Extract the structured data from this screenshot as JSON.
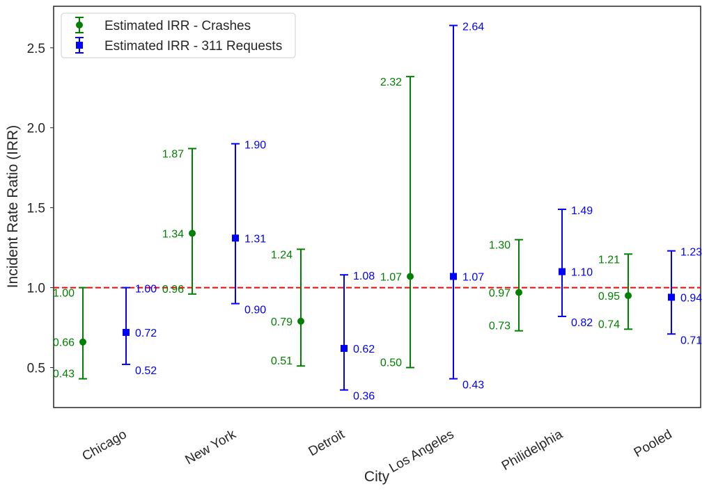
{
  "chart_data": {
    "type": "errorbar",
    "xlabel": "City",
    "ylabel": "Incident Rate Ratio (IRR)",
    "categories": [
      "Chicago",
      "New York",
      "Detroit",
      "Los Angeles",
      "Philidelphia",
      "Pooled"
    ],
    "ylim": [
      0.25,
      2.76
    ],
    "yticks": [
      0.5,
      1.0,
      1.5,
      2.0,
      2.5
    ],
    "ytick_labels": [
      "0.5",
      "1.0",
      "1.5",
      "2.0",
      "2.5"
    ],
    "reference_line": {
      "y": 1.0,
      "style": "dashed",
      "color": "#ff0000"
    },
    "grid": false,
    "legend_position": "top-left",
    "series": [
      {
        "name": "Estimated IRR - Crashes",
        "marker": "circle",
        "color": "#008000",
        "estimate": [
          0.66,
          1.34,
          0.79,
          1.07,
          0.97,
          0.95
        ],
        "lower": [
          0.43,
          0.96,
          0.51,
          0.5,
          0.73,
          0.74
        ],
        "upper": [
          1.0,
          1.87,
          1.24,
          2.32,
          1.3,
          1.21
        ],
        "estimate_labels": [
          "0.66",
          "1.34",
          "0.79",
          "1.07",
          "0.97",
          "0.95"
        ],
        "lower_labels": [
          "0.43",
          "0.96",
          "0.51",
          "0.50",
          "0.73",
          "0.74"
        ],
        "upper_labels": [
          "1.00",
          "1.87",
          "1.24",
          "2.32",
          "1.30",
          "1.21"
        ]
      },
      {
        "name": "Estimated IRR - 311 Requests",
        "marker": "square",
        "color": "#0000ff",
        "estimate": [
          0.72,
          1.31,
          0.62,
          1.07,
          1.1,
          0.94
        ],
        "lower": [
          0.52,
          0.9,
          0.36,
          0.43,
          0.82,
          0.71
        ],
        "upper": [
          1.0,
          1.9,
          1.08,
          2.64,
          1.49,
          1.23
        ],
        "estimate_labels": [
          "0.72",
          "1.31",
          "0.62",
          "1.07",
          "1.10",
          "0.94"
        ],
        "lower_labels": [
          "0.52",
          "0.90",
          "0.36",
          "0.43",
          "0.82",
          "0.71"
        ],
        "upper_labels": [
          "1.00",
          "1.90",
          "1.08",
          "2.64",
          "1.49",
          "1.23"
        ]
      }
    ]
  }
}
